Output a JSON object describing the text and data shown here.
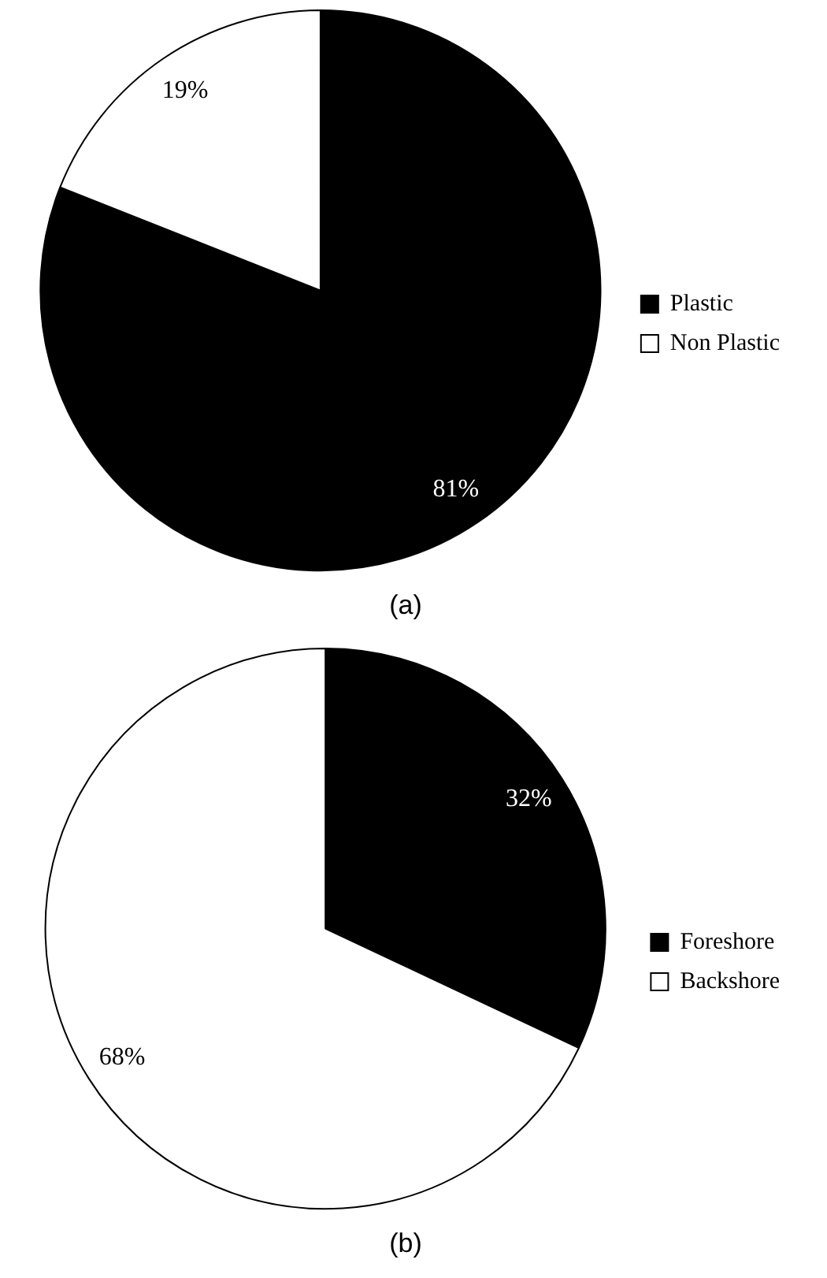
{
  "chart_data": [
    {
      "type": "pie",
      "title": "(a)",
      "categories": [
        "Plastic",
        "Non Plastic"
      ],
      "values": [
        81,
        19
      ],
      "colors": [
        "#000000",
        "#ffffff"
      ],
      "value_labels": [
        "81%",
        "19%"
      ],
      "legend": "right"
    },
    {
      "type": "pie",
      "title": "(b)",
      "categories": [
        "Foreshore",
        "Backshore"
      ],
      "values": [
        32,
        68
      ],
      "colors": [
        "#000000",
        "#ffffff"
      ],
      "value_labels": [
        "32%",
        "68%"
      ],
      "legend": "right"
    }
  ]
}
